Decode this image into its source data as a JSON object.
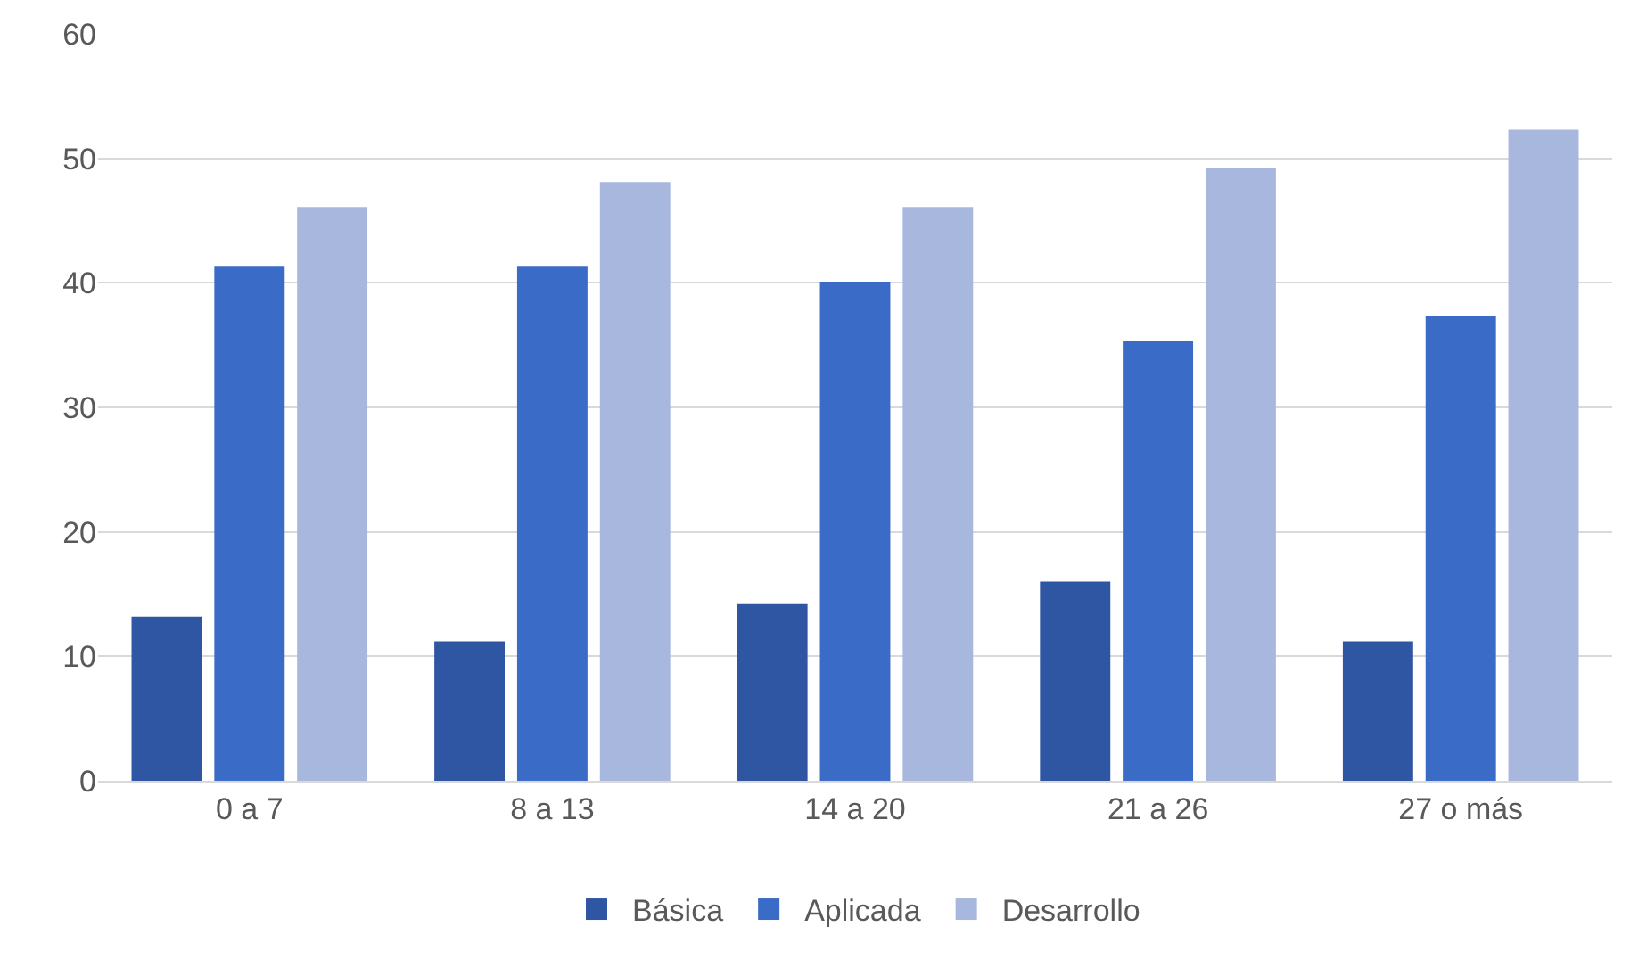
{
  "chart_data": {
    "type": "bar",
    "categories": [
      "0 a 7",
      "8 a 13",
      "14 a 20",
      "21 a 26",
      "27 o más"
    ],
    "series": [
      {
        "name": "Básica",
        "color": "#2f56a3",
        "values": [
          13.2,
          11.2,
          14.2,
          16.0,
          11.2
        ]
      },
      {
        "name": "Aplicada",
        "color": "#3a6bc6",
        "values": [
          41.3,
          41.3,
          40.1,
          35.3,
          37.3
        ]
      },
      {
        "name": "Desarrollo",
        "color": "#a8b7dd",
        "values": [
          46.1,
          48.1,
          46.1,
          49.2,
          52.3
        ]
      }
    ],
    "ylim": [
      0,
      60
    ],
    "yticks": [
      0,
      10,
      20,
      30,
      40,
      50,
      60
    ],
    "grid": "y",
    "legend": "bottom"
  }
}
